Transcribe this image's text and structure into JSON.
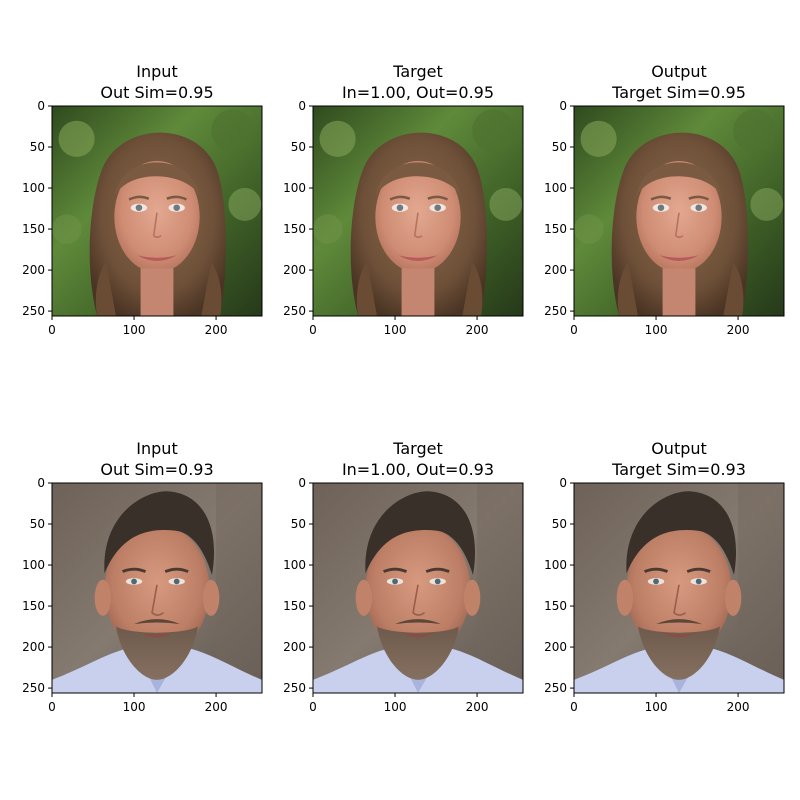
{
  "chart_data": [
    {
      "type": "image",
      "title": [
        "Input",
        "Out Sim=0.95"
      ],
      "image": "face-young-woman-long-hair-foliage-background",
      "xlim": [
        0,
        256
      ],
      "ylim": [
        256,
        0
      ],
      "xticks": [
        0,
        100,
        200
      ],
      "yticks": [
        0,
        50,
        100,
        150,
        200,
        250
      ]
    },
    {
      "type": "image",
      "title": [
        "Target",
        "In=1.00, Out=0.95"
      ],
      "image": "face-young-woman-long-hair-foliage-background",
      "xlim": [
        0,
        256
      ],
      "ylim": [
        256,
        0
      ],
      "xticks": [
        0,
        100,
        200
      ],
      "yticks": [
        0,
        50,
        100,
        150,
        200,
        250
      ]
    },
    {
      "type": "image",
      "title": [
        "Output",
        "Target Sim=0.95"
      ],
      "image": "face-young-woman-long-hair-foliage-background",
      "xlim": [
        0,
        256
      ],
      "ylim": [
        256,
        0
      ],
      "xticks": [
        0,
        100,
        200
      ],
      "yticks": [
        0,
        50,
        100,
        150,
        200,
        250
      ]
    },
    {
      "type": "image",
      "title": [
        "Input",
        "Out Sim=0.93"
      ],
      "image": "face-middle-aged-man-grey-background",
      "xlim": [
        0,
        256
      ],
      "ylim": [
        256,
        0
      ],
      "xticks": [
        0,
        100,
        200
      ],
      "yticks": [
        0,
        50,
        100,
        150,
        200,
        250
      ]
    },
    {
      "type": "image",
      "title": [
        "Target",
        "In=1.00, Out=0.93"
      ],
      "image": "face-middle-aged-man-grey-background",
      "xlim": [
        0,
        256
      ],
      "ylim": [
        256,
        0
      ],
      "xticks": [
        0,
        100,
        200
      ],
      "yticks": [
        0,
        50,
        100,
        150,
        200,
        250
      ]
    },
    {
      "type": "image",
      "title": [
        "Output",
        "Target Sim=0.93"
      ],
      "image": "face-middle-aged-man-grey-background",
      "xlim": [
        0,
        256
      ],
      "ylim": [
        256,
        0
      ],
      "xticks": [
        0,
        100,
        200
      ],
      "yticks": [
        0,
        50,
        100,
        150,
        200,
        250
      ]
    }
  ]
}
